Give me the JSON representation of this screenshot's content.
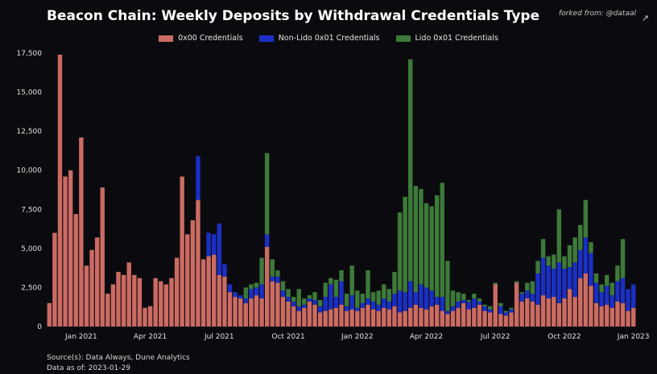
{
  "title": "Beacon Chain: Weekly Deposits by Withdrawal Credentials Type",
  "forked_from": "forked from: @dataal",
  "expand_icon": "expand-icon",
  "source_lines": [
    "Source(s): Data Always, Dune Analytics",
    "Data as of: 2023-01-29"
  ],
  "colors": {
    "background": "#0b0b0f",
    "0x00": "#cc6b63",
    "nonlido": "#1b2fc4",
    "lido": "#3d7a3a"
  },
  "chart_data": {
    "type": "bar",
    "stacked": true,
    "title": "Beacon Chain: Weekly Deposits by Withdrawal Credentials Type",
    "ylim": [
      0,
      17500
    ],
    "yticks": [
      0,
      2500,
      5000,
      7500,
      10000,
      12500,
      15000,
      17500
    ],
    "ytick_labels": [
      "0",
      "2,500",
      "5,000",
      "7,500",
      "10,000",
      "12,500",
      "15,000",
      "17,500"
    ],
    "xtick_labels": [
      "Jan 2021",
      "Apr 2021",
      "Jul 2021",
      "Oct 2021",
      "Jan 2022",
      "Apr 2022",
      "Jul 2022",
      "Oct 2022",
      "Jan 2023"
    ],
    "xtick_weeks": [
      6,
      19,
      32,
      45,
      58,
      71,
      84,
      97,
      110
    ],
    "legend_position": "top-center",
    "grid": false,
    "series": [
      {
        "name": "0x00 Credentials",
        "key": "0x00",
        "values": [
          1500,
          6000,
          17400,
          9600,
          10000,
          7200,
          12100,
          3900,
          4900,
          5700,
          8900,
          2100,
          2700,
          3500,
          3300,
          4100,
          3300,
          3100,
          1200,
          1300,
          3100,
          2900,
          2700,
          3100,
          4400,
          9600,
          5900,
          6800,
          8100,
          4300,
          4500,
          4600,
          3300,
          3200,
          2200,
          1900,
          1800,
          1500,
          1800,
          2000,
          1800,
          5100,
          2900,
          2800,
          1900,
          1600,
          1300,
          1000,
          1200,
          1600,
          1400,
          900,
          1000,
          1100,
          1200,
          1400,
          1000,
          1100,
          1000,
          1200,
          1400,
          1100,
          1000,
          1200,
          1100,
          1300,
          900,
          1000,
          1200,
          1400,
          1200,
          1100,
          1300,
          1400,
          1000,
          800,
          1000,
          1200,
          1500,
          1100,
          1200,
          1400,
          1000,
          900,
          2700,
          800,
          700,
          900,
          2800,
          1600,
          1800,
          1600,
          1400,
          2000,
          1800,
          1900,
          1500,
          1800,
          2400,
          1900,
          3100,
          3400,
          2600,
          1500,
          1300,
          1400,
          1200,
          1600,
          1500,
          1000,
          1200
        ]
      },
      {
        "name": "Non-Lido 0x01 Credentials",
        "key": "nonlido",
        "values": [
          0,
          0,
          0,
          0,
          0,
          0,
          0,
          0,
          0,
          0,
          0,
          0,
          0,
          0,
          0,
          0,
          0,
          0,
          0,
          0,
          0,
          0,
          0,
          0,
          0,
          0,
          0,
          0,
          2800,
          0,
          1500,
          1300,
          3300,
          800,
          500,
          300,
          200,
          300,
          600,
          500,
          900,
          800,
          300,
          400,
          400,
          300,
          300,
          300,
          200,
          200,
          300,
          400,
          900,
          1600,
          700,
          1500,
          300,
          900,
          200,
          300,
          400,
          500,
          400,
          600,
          500,
          800,
          1400,
          1200,
          1700,
          800,
          1500,
          1400,
          1000,
          500,
          900,
          200,
          300,
          400,
          200,
          500,
          600,
          200,
          300,
          200,
          0,
          500,
          200,
          200,
          0,
          500,
          500,
          500,
          2000,
          2400,
          2100,
          1800,
          2600,
          1900,
          1400,
          2200,
          1800,
          2300,
          2100,
          1300,
          900,
          1200,
          800,
          1300,
          1600,
          1400,
          1500
        ]
      },
      {
        "name": "Lido 0x01 Credentials",
        "key": "lido",
        "values": [
          0,
          0,
          0,
          0,
          0,
          0,
          0,
          0,
          0,
          0,
          0,
          0,
          0,
          0,
          0,
          0,
          0,
          0,
          0,
          0,
          0,
          0,
          0,
          0,
          0,
          0,
          0,
          0,
          0,
          0,
          0,
          0,
          0,
          0,
          0,
          0,
          0,
          700,
          300,
          300,
          1700,
          5200,
          1100,
          400,
          600,
          500,
          300,
          1100,
          400,
          200,
          500,
          400,
          900,
          400,
          1100,
          700,
          800,
          1900,
          1100,
          600,
          1800,
          600,
          900,
          900,
          800,
          1400,
          5000,
          6100,
          14200,
          6800,
          6100,
          5400,
          5400,
          6500,
          7300,
          3200,
          1000,
          600,
          400,
          100,
          300,
          200,
          100,
          200,
          100,
          200,
          100,
          100,
          100,
          100,
          500,
          800,
          800,
          1200,
          600,
          900,
          3400,
          800,
          1400,
          1600,
          1600,
          2400,
          700,
          600,
          500,
          700,
          800,
          1000,
          2500
        ]
      }
    ]
  }
}
